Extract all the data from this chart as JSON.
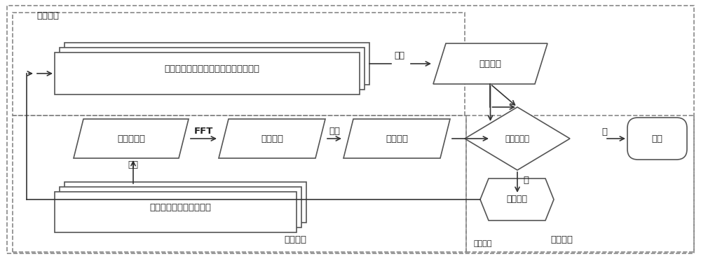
{
  "fig_width": 10.0,
  "fig_height": 3.7,
  "dpi": 100,
  "bg": "#ffffff",
  "ec": "#555555",
  "tc": "#222222",
  "lw": 1.2,
  "fs": 9.5,
  "labels": {
    "excitation_analysis": "激励分析",
    "hydraulic": "液压泵、液压马达、液压油缸和减速机",
    "monitor": "监视",
    "excite_freq": "激励频率",
    "accel": "加速度信号",
    "fft": "FFT",
    "spectrum": "频谱特性",
    "identify": "识别",
    "vib_freq": "振动频率",
    "collect": "采集",
    "crane": "大臂、转台、车架和支腿",
    "sys_identify": "系统识别",
    "resonance": "是否共振？",
    "yes": "是",
    "no": "否",
    "control": "控制系统",
    "control_label": "控制系统",
    "adjust": "调整信号",
    "normal": "正常"
  }
}
